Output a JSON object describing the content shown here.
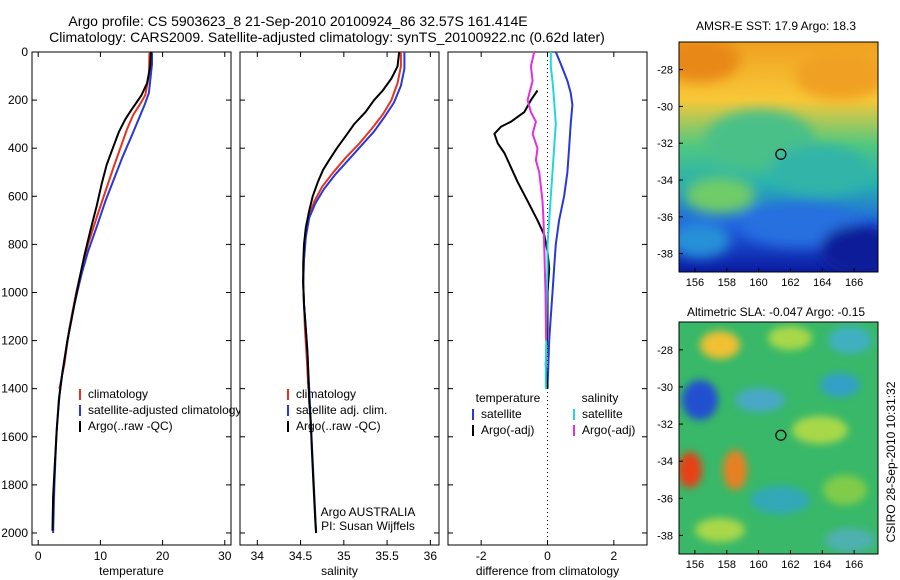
{
  "header": {
    "line1": "Argo profile: CS 5903623_8 21-Sep-2010 20100924_86 32.57S 161.414E",
    "line2": "Climatology: CARS2009. Satellite-adjusted climatology: synTS_20100922.nc (0.62d later)"
  },
  "colors": {
    "climatology": "#e8321e",
    "satellite": "#2838d8",
    "argo": "#000000",
    "salinity_satellite": "#20d8d8",
    "salinity_argo": "#e030e0"
  },
  "chart_data": [
    {
      "type": "line",
      "id": "temperature",
      "xlabel": "temperature",
      "xlim": [
        -1,
        31
      ],
      "ylim": [
        0,
        2050
      ],
      "xticks": [
        0,
        10,
        20,
        30
      ],
      "yticks": [
        0,
        200,
        400,
        600,
        800,
        1000,
        1200,
        1400,
        1600,
        1800,
        2000
      ],
      "legend": [
        "climatology",
        "satellite-adjusted climatology",
        "Argo(..raw -QC)"
      ],
      "series": [
        {
          "name": "climatology",
          "color_key": "climatology",
          "points": [
            [
              17.9,
              0
            ],
            [
              17.8,
              100
            ],
            [
              17.2,
              180
            ],
            [
              16.3,
              220
            ],
            [
              15.3,
              260
            ],
            [
              14.3,
              320
            ],
            [
              13.2,
              400
            ],
            [
              12.1,
              480
            ],
            [
              10.8,
              580
            ],
            [
              9.5,
              680
            ],
            [
              8.0,
              800
            ],
            [
              7.0,
              900
            ],
            [
              6.1,
              1000
            ],
            [
              5.0,
              1150
            ],
            [
              4.2,
              1300
            ],
            [
              3.4,
              1400
            ]
          ]
        },
        {
          "name": "satellite-adjusted climatology",
          "color_key": "satellite",
          "points": [
            [
              18.3,
              0
            ],
            [
              18.3,
              50
            ],
            [
              18.0,
              120
            ],
            [
              17.8,
              170
            ],
            [
              17.1,
              220
            ],
            [
              16.3,
              270
            ],
            [
              15.0,
              350
            ],
            [
              13.5,
              440
            ],
            [
              12.3,
              520
            ],
            [
              10.8,
              620
            ],
            [
              9.5,
              720
            ],
            [
              8.0,
              830
            ],
            [
              7.0,
              920
            ],
            [
              5.8,
              1050
            ],
            [
              4.7,
              1200
            ],
            [
              3.8,
              1350
            ],
            [
              3.3,
              1450
            ],
            [
              2.9,
              1600
            ],
            [
              2.6,
              1800
            ],
            [
              2.4,
              2000
            ]
          ]
        },
        {
          "name": "Argo(..raw -QC)",
          "color_key": "argo",
          "points": [
            [
              18.1,
              0
            ],
            [
              18.0,
              60
            ],
            [
              17.5,
              130
            ],
            [
              16.6,
              180
            ],
            [
              15.8,
              210
            ],
            [
              15.0,
              240
            ],
            [
              14.0,
              280
            ],
            [
              13.0,
              330
            ],
            [
              12.0,
              400
            ],
            [
              11.0,
              470
            ],
            [
              10.2,
              550
            ],
            [
              9.4,
              640
            ],
            [
              8.4,
              740
            ],
            [
              7.4,
              850
            ],
            [
              6.5,
              960
            ],
            [
              5.6,
              1080
            ],
            [
              4.7,
              1200
            ],
            [
              3.9,
              1330
            ],
            [
              3.4,
              1430
            ],
            [
              3.0,
              1560
            ],
            [
              2.7,
              1700
            ],
            [
              2.4,
              1850
            ],
            [
              2.3,
              1990
            ]
          ]
        }
      ]
    },
    {
      "type": "line",
      "id": "salinity",
      "xlabel": "salinity",
      "xlim": [
        33.8,
        36.1
      ],
      "ylim": [
        0,
        2050
      ],
      "xticks": [
        34,
        34.5,
        35,
        35.5,
        36
      ],
      "legend": [
        "climatology",
        "satellite adj. clim.",
        "Argo(..raw -QC)"
      ],
      "annotation": [
        "Argo AUSTRALIA",
        "PI: Susan Wijffels"
      ],
      "series": [
        {
          "name": "climatology",
          "color_key": "climatology",
          "points": [
            [
              35.66,
              0
            ],
            [
              35.66,
              60
            ],
            [
              35.62,
              130
            ],
            [
              35.55,
              200
            ],
            [
              35.45,
              260
            ],
            [
              35.32,
              320
            ],
            [
              35.18,
              380
            ],
            [
              35.02,
              440
            ],
            [
              34.88,
              500
            ],
            [
              34.75,
              560
            ],
            [
              34.66,
              620
            ],
            [
              34.6,
              680
            ],
            [
              34.56,
              760
            ],
            [
              34.54,
              860
            ],
            [
              34.53,
              960
            ],
            [
              34.54,
              1050
            ],
            [
              34.55,
              1150
            ],
            [
              34.57,
              1260
            ],
            [
              34.59,
              1400
            ]
          ]
        },
        {
          "name": "satellite adj. clim.",
          "color_key": "satellite",
          "points": [
            [
              35.7,
              0
            ],
            [
              35.7,
              70
            ],
            [
              35.66,
              140
            ],
            [
              35.58,
              210
            ],
            [
              35.47,
              270
            ],
            [
              35.35,
              330
            ],
            [
              35.2,
              390
            ],
            [
              35.05,
              450
            ],
            [
              34.9,
              510
            ],
            [
              34.77,
              570
            ],
            [
              34.67,
              630
            ],
            [
              34.6,
              690
            ],
            [
              34.56,
              770
            ],
            [
              34.54,
              860
            ],
            [
              34.53,
              960
            ],
            [
              34.54,
              1050
            ],
            [
              34.56,
              1150
            ],
            [
              34.58,
              1260
            ],
            [
              34.6,
              1400
            ],
            [
              34.62,
              1550
            ],
            [
              34.64,
              1700
            ],
            [
              34.66,
              1850
            ],
            [
              34.68,
              2000
            ]
          ]
        },
        {
          "name": "Argo(..raw -QC)",
          "color_key": "argo",
          "points": [
            [
              35.64,
              0
            ],
            [
              35.62,
              60
            ],
            [
              35.55,
              110
            ],
            [
              35.45,
              160
            ],
            [
              35.35,
              200
            ],
            [
              35.25,
              250
            ],
            [
              35.12,
              300
            ],
            [
              35.02,
              350
            ],
            [
              34.92,
              400
            ],
            [
              34.83,
              450
            ],
            [
              34.76,
              490
            ],
            [
              34.7,
              540
            ],
            [
              34.64,
              600
            ],
            [
              34.6,
              660
            ],
            [
              34.56,
              730
            ],
            [
              34.54,
              800
            ],
            [
              34.53,
              880
            ],
            [
              34.53,
              960
            ],
            [
              34.54,
              1050
            ],
            [
              34.56,
              1150
            ],
            [
              34.58,
              1250
            ],
            [
              34.59,
              1350
            ],
            [
              34.6,
              1450
            ],
            [
              34.62,
              1550
            ],
            [
              34.63,
              1650
            ],
            [
              34.65,
              1800
            ],
            [
              34.67,
              1950
            ],
            [
              34.68,
              2000
            ]
          ]
        }
      ]
    },
    {
      "type": "line",
      "id": "difference",
      "xlabel": "difference from climatology",
      "xlim": [
        -3,
        3
      ],
      "ylim": [
        0,
        2050
      ],
      "xticks": [
        -2,
        0,
        2
      ],
      "legend_left_title": "temperature",
      "legend_left": [
        "satellite",
        "Argo(-adj)"
      ],
      "legend_right_title": "salinity",
      "legend_right": [
        "satellite",
        "Argo(-adj)"
      ],
      "series": [
        {
          "name": "temperature satellite",
          "color_key": "satellite",
          "points": [
            [
              0.25,
              0
            ],
            [
              0.4,
              50
            ],
            [
              0.6,
              120
            ],
            [
              0.7,
              170
            ],
            [
              0.75,
              220
            ],
            [
              0.7,
              300
            ],
            [
              0.65,
              400
            ],
            [
              0.6,
              500
            ],
            [
              0.5,
              600
            ],
            [
              0.35,
              700
            ],
            [
              0.25,
              800
            ],
            [
              0.2,
              900
            ],
            [
              0.15,
              1000
            ],
            [
              0.1,
              1100
            ],
            [
              0.05,
              1200
            ],
            [
              0.0,
              1400
            ]
          ]
        },
        {
          "name": "temperature Argo(-adj)",
          "color_key": "argo",
          "points": [
            [
              -0.3,
              160
            ],
            [
              -0.5,
              200
            ],
            [
              -0.7,
              250
            ],
            [
              -1.1,
              290
            ],
            [
              -1.4,
              310
            ],
            [
              -1.6,
              340
            ],
            [
              -1.5,
              380
            ],
            [
              -1.3,
              420
            ],
            [
              -1.1,
              480
            ],
            [
              -0.9,
              540
            ],
            [
              -0.6,
              620
            ],
            [
              -0.3,
              700
            ],
            [
              -0.1,
              760
            ],
            [
              0.0,
              830
            ],
            [
              0.05,
              900
            ],
            [
              0.0,
              1000
            ],
            [
              0.0,
              1150
            ],
            [
              -0.05,
              1300
            ],
            [
              0.0,
              1400
            ]
          ]
        },
        {
          "name": "salinity satellite",
          "color_key": "salinity_satellite",
          "points": [
            [
              0.1,
              0
            ],
            [
              0.1,
              60
            ],
            [
              0.15,
              120
            ],
            [
              0.2,
              200
            ],
            [
              0.25,
              300
            ],
            [
              0.2,
              400
            ],
            [
              0.15,
              500
            ],
            [
              0.1,
              600
            ],
            [
              0.05,
              700
            ],
            [
              0.0,
              800
            ],
            [
              0.0,
              900
            ],
            [
              -0.02,
              1000
            ],
            [
              -0.03,
              1100
            ],
            [
              -0.04,
              1200
            ],
            [
              -0.05,
              1300
            ],
            [
              -0.05,
              1400
            ]
          ]
        },
        {
          "name": "salinity Argo(-adj)",
          "color_key": "salinity_argo",
          "points": [
            [
              -0.4,
              0
            ],
            [
              -0.5,
              60
            ],
            [
              -0.45,
              120
            ],
            [
              -0.6,
              200
            ],
            [
              -0.5,
              250
            ],
            [
              -0.35,
              290
            ],
            [
              -0.45,
              340
            ],
            [
              -0.3,
              400
            ],
            [
              -0.35,
              450
            ],
            [
              -0.25,
              500
            ],
            [
              -0.2,
              560
            ],
            [
              -0.15,
              620
            ],
            [
              -0.12,
              700
            ],
            [
              -0.1,
              800
            ],
            [
              -0.08,
              900
            ],
            [
              -0.06,
              1000
            ],
            [
              -0.05,
              1100
            ],
            [
              -0.04,
              1200
            ]
          ]
        }
      ]
    },
    {
      "type": "heatmap",
      "id": "sst",
      "title": "AMSR-E SST: 17.9 Argo: 18.3",
      "xticks": [
        156,
        158,
        160,
        162,
        164,
        166
      ],
      "yticks": [
        -28,
        -30,
        -32,
        -34,
        -36,
        -38
      ],
      "xlim": [
        155,
        167.5
      ],
      "ylim": [
        -39,
        -26.5
      ],
      "marker": [
        161.4,
        -32.6
      ]
    },
    {
      "type": "heatmap",
      "id": "sla",
      "title": "Altimetric SLA: -0.047 Argo: -0.15",
      "xticks": [
        156,
        158,
        160,
        162,
        164,
        166
      ],
      "yticks": [
        -28,
        -30,
        -32,
        -34,
        -36,
        -38
      ],
      "xlim": [
        155,
        167.5
      ],
      "ylim": [
        -39,
        -26.5
      ],
      "marker": [
        161.4,
        -32.6
      ]
    }
  ],
  "footer": {
    "credit": "CSIRO 28-Sep-2010 10:31:32"
  }
}
